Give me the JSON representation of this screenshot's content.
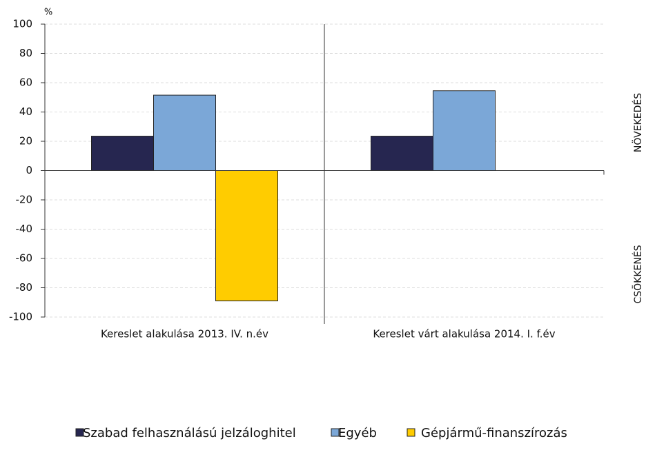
{
  "chart_data": {
    "type": "bar",
    "y_unit": "%",
    "categories": [
      "Kereslet alakulása 2013. IV. n.év",
      "Kereslet várt alakulása 2014. I. f.év"
    ],
    "series": [
      {
        "name": "Szabad felhasználású jelzáloghitel",
        "color": "#262650",
        "values": [
          23.5,
          23.5
        ]
      },
      {
        "name": "Egyéb",
        "color": "#7ba7d7",
        "values": [
          51.5,
          54.5
        ]
      },
      {
        "name": "Gépjármű-finanszírozás",
        "color": "#ffcc00",
        "values": [
          -89,
          0
        ]
      }
    ],
    "ylim": [
      -100,
      100
    ],
    "yticks": [
      -100,
      -80,
      -60,
      -40,
      -20,
      0,
      20,
      40,
      60,
      80,
      100
    ],
    "grid": true,
    "annotations": [
      "NÖVEKEDÉS",
      "CSÖKKENÉS"
    ]
  }
}
